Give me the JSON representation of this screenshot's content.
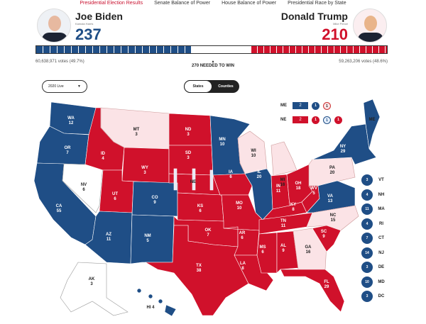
{
  "nav": [
    "Presidential Election Results",
    "Senate Balance of Power",
    "House Balance of Power",
    "Presidential Race by State"
  ],
  "biden": {
    "name": "Joe Biden",
    "vp": "Kamala Harris",
    "ev": "237",
    "votes": "60,638,971 votes (49.7%)"
  },
  "trump": {
    "name": "Donald Trump",
    "vp": "Mike Pence",
    "ev": "210",
    "votes": "59,263,206 votes (48.6%)"
  },
  "needed": "270 NEEDED TO WIN",
  "year_select": "2020 Live",
  "toggle": {
    "states": "States",
    "counties": "Counties"
  },
  "colors": {
    "dem": "#1f4e86",
    "rep": "#d0112b",
    "lean_rep": "#fbe3e6",
    "undecided": "#ffffff"
  },
  "split": {
    "me": {
      "label": "ME",
      "statewide": "2",
      "districts": [
        "1",
        "1"
      ]
    },
    "ne": {
      "label": "NE",
      "statewide": "2",
      "districts": [
        "1",
        "1",
        "1"
      ]
    }
  },
  "states": {
    "WA": [
      "WA",
      "12"
    ],
    "OR": [
      "OR",
      "7"
    ],
    "CA": [
      "CA",
      "55"
    ],
    "NV": [
      "NV",
      "6"
    ],
    "ID": [
      "ID",
      "4"
    ],
    "MT": [
      "MT",
      "3"
    ],
    "WY": [
      "WY",
      "3"
    ],
    "UT": [
      "UT",
      "6"
    ],
    "CO": [
      "CO",
      "9"
    ],
    "AZ": [
      "AZ",
      "11"
    ],
    "NM": [
      "NM",
      "5"
    ],
    "ND": [
      "ND",
      "3"
    ],
    "SD": [
      "SD",
      "3"
    ],
    "NE": [
      "NE",
      ""
    ],
    "KS": [
      "KS",
      "6"
    ],
    "OK": [
      "OK",
      "7"
    ],
    "TX": [
      "TX",
      "38"
    ],
    "MN": [
      "MN",
      "10"
    ],
    "IA": [
      "IA",
      "6"
    ],
    "MO": [
      "MO",
      "10"
    ],
    "AR": [
      "AR",
      "6"
    ],
    "LA": [
      "LA",
      "8"
    ],
    "WI": [
      "WI",
      "10"
    ],
    "IL": [
      "IL",
      "20"
    ],
    "MI": [
      "MI",
      "16"
    ],
    "IN": [
      "IN",
      "11"
    ],
    "OH": [
      "OH",
      "18"
    ],
    "KY": [
      "KY",
      "8"
    ],
    "TN": [
      "TN",
      "11"
    ],
    "MS": [
      "MS",
      "6"
    ],
    "AL": [
      "AL",
      "9"
    ],
    "GA": [
      "GA",
      "16"
    ],
    "FL": [
      "FL",
      "29"
    ],
    "SC": [
      "SC",
      "9"
    ],
    "NC": [
      "NC",
      "15"
    ],
    "VA": [
      "VA",
      "13"
    ],
    "WV": [
      "WV",
      "5"
    ],
    "PA": [
      "PA",
      "20"
    ],
    "NY": [
      "NY",
      "29"
    ],
    "ME": [
      "ME",
      ""
    ],
    "AK": [
      "AK",
      "3"
    ],
    "HI": [
      "HI 4",
      ""
    ]
  },
  "small_states": [
    [
      "3",
      "VT"
    ],
    [
      "4",
      "NH"
    ],
    [
      "11",
      "MA"
    ],
    [
      "4",
      "RI"
    ],
    [
      "7",
      "CT"
    ],
    [
      "14",
      "NJ"
    ],
    [
      "3",
      "DE"
    ],
    [
      "10",
      "MD"
    ],
    [
      "3",
      "DC"
    ]
  ]
}
